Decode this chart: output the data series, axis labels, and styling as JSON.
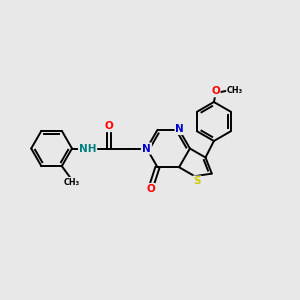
{
  "background_color": "#e8e8e8",
  "bond_color": "#000000",
  "atom_colors": {
    "N": "#0000cd",
    "O": "#ff0000",
    "S": "#cccc00",
    "NH": "#008080",
    "C": "#000000"
  },
  "lw": 1.4,
  "fontsize": 7.5
}
